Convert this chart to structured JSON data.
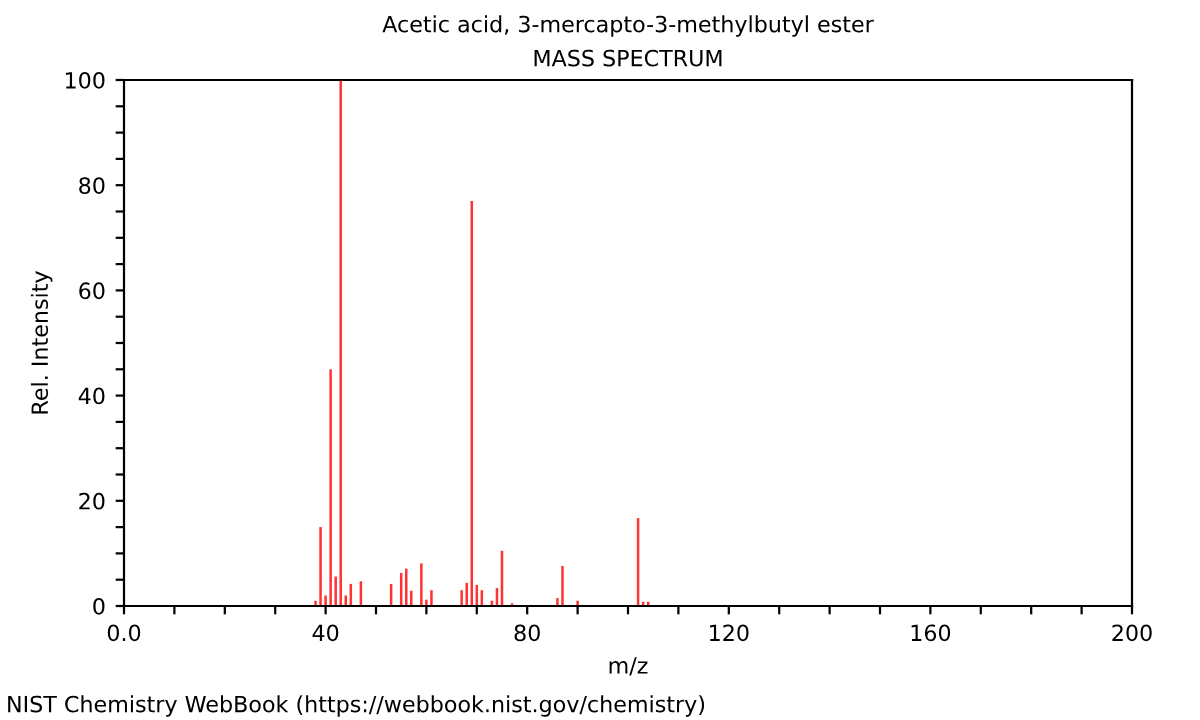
{
  "chart_data": {
    "type": "bar",
    "title": "Acetic acid, 3-mercapto-3-methylbutyl ester",
    "subtitle": "MASS SPECTRUM",
    "xlabel": "m/z",
    "ylabel": "Rel. Intensity",
    "annotations": [
      "NIST Chemistry WebBook (https://webbook.nist.gov/chemistry)"
    ],
    "x": [
      38,
      39,
      40,
      41,
      42,
      43,
      44,
      45,
      47,
      53,
      55,
      56,
      57,
      59,
      60,
      61,
      67,
      68,
      69,
      70,
      71,
      73,
      74,
      75,
      77,
      86,
      87,
      90,
      102,
      103,
      104
    ],
    "values": [
      1,
      15,
      2,
      45,
      5.6,
      100,
      2,
      4.2,
      4.7,
      4.2,
      6.3,
      7.1,
      2.9,
      8.1,
      1.2,
      3,
      3,
      4.4,
      77,
      4,
      3,
      1,
      3.4,
      10.5,
      0.5,
      1.5,
      7.6,
      1,
      16.7,
      0.8,
      0.8
    ],
    "color": "#ff3333",
    "xlim": [
      0,
      200
    ],
    "ylim": [
      0,
      100
    ],
    "xticks": [
      {
        "value": 0,
        "label": "0.0"
      },
      {
        "value": 10,
        "label": null
      },
      {
        "value": 20,
        "label": null
      },
      {
        "value": 30,
        "label": null
      },
      40,
      {
        "value": 50,
        "label": null
      },
      {
        "value": 60,
        "label": null
      },
      {
        "value": 70,
        "label": null
      },
      80,
      {
        "value": 90,
        "label": null
      },
      {
        "value": 100,
        "label": null
      },
      {
        "value": 110,
        "label": null
      },
      120,
      {
        "value": 130,
        "label": null
      },
      {
        "value": 140,
        "label": null
      },
      {
        "value": 150,
        "label": null
      },
      160,
      {
        "value": 170,
        "label": null
      },
      {
        "value": 180,
        "label": null
      },
      {
        "value": 190,
        "label": null
      },
      200
    ],
    "yticks": [
      0,
      {
        "value": 5,
        "label": null
      },
      {
        "value": 10,
        "label": null
      },
      {
        "value": 15,
        "label": null
      },
      20,
      {
        "value": 25,
        "label": null
      },
      {
        "value": 30,
        "label": null
      },
      {
        "value": 35,
        "label": null
      },
      40,
      {
        "value": 45,
        "label": null
      },
      {
        "value": 50,
        "label": null
      },
      {
        "value": 55,
        "label": null
      },
      60,
      {
        "value": 65,
        "label": null
      },
      {
        "value": 70,
        "label": null
      },
      {
        "value": 75,
        "label": null
      },
      80,
      {
        "value": 85,
        "label": null
      },
      {
        "value": 90,
        "label": null
      },
      {
        "value": 95,
        "label": null
      },
      100
    ],
    "grid": false
  }
}
